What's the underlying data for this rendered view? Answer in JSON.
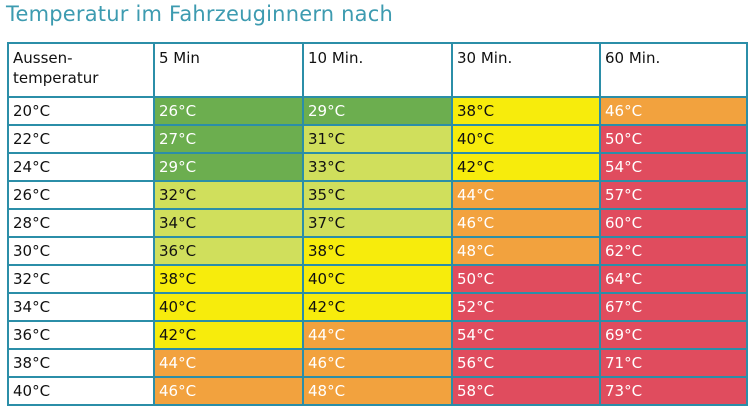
{
  "title": "Temperatur im Fahrzeuginnern nach",
  "colors": {
    "title": "#3d9bb0",
    "border": "#2b8ea8",
    "dark_green": "#6cae4f",
    "light_green": "#d0df5c",
    "yellow": "#f7ec0c",
    "orange": "#f2a23e",
    "red": "#e04c5e",
    "text_dark": "#111111",
    "text_light": "#ffffff"
  },
  "table": {
    "headers": [
      "Aussen-\ntemperatur",
      "5 Min",
      "10 Min.",
      "30 Min.",
      "60 Min."
    ],
    "rows": [
      {
        "label": "20°C",
        "cells": [
          {
            "text": "26°C",
            "color": "dark_green"
          },
          {
            "text": "29°C",
            "color": "dark_green"
          },
          {
            "text": "38°C",
            "color": "yellow"
          },
          {
            "text": "46°C",
            "color": "orange"
          }
        ]
      },
      {
        "label": "22°C",
        "cells": [
          {
            "text": "27°C",
            "color": "dark_green"
          },
          {
            "text": "31°C",
            "color": "light_green"
          },
          {
            "text": "40°C",
            "color": "yellow"
          },
          {
            "text": "50°C",
            "color": "red"
          }
        ]
      },
      {
        "label": "24°C",
        "cells": [
          {
            "text": "29°C",
            "color": "dark_green"
          },
          {
            "text": "33°C",
            "color": "light_green"
          },
          {
            "text": "42°C",
            "color": "yellow"
          },
          {
            "text": "54°C",
            "color": "red"
          }
        ]
      },
      {
        "label": "26°C",
        "cells": [
          {
            "text": "32°C",
            "color": "light_green"
          },
          {
            "text": "35°C",
            "color": "light_green"
          },
          {
            "text": "44°C",
            "color": "orange"
          },
          {
            "text": "57°C",
            "color": "red"
          }
        ]
      },
      {
        "label": "28°C",
        "cells": [
          {
            "text": "34°C",
            "color": "light_green"
          },
          {
            "text": "37°C",
            "color": "light_green"
          },
          {
            "text": "46°C",
            "color": "orange"
          },
          {
            "text": "60°C",
            "color": "red"
          }
        ]
      },
      {
        "label": "30°C",
        "cells": [
          {
            "text": "36°C",
            "color": "light_green"
          },
          {
            "text": "38°C",
            "color": "yellow"
          },
          {
            "text": "48°C",
            "color": "orange"
          },
          {
            "text": "62°C",
            "color": "red"
          }
        ]
      },
      {
        "label": "32°C",
        "cells": [
          {
            "text": "38°C",
            "color": "yellow"
          },
          {
            "text": "40°C",
            "color": "yellow"
          },
          {
            "text": "50°C",
            "color": "red"
          },
          {
            "text": "64°C",
            "color": "red"
          }
        ]
      },
      {
        "label": "34°C",
        "cells": [
          {
            "text": "40°C",
            "color": "yellow"
          },
          {
            "text": "42°C",
            "color": "yellow"
          },
          {
            "text": "52°C",
            "color": "red"
          },
          {
            "text": "67°C",
            "color": "red"
          }
        ]
      },
      {
        "label": "36°C",
        "cells": [
          {
            "text": "42°C",
            "color": "yellow"
          },
          {
            "text": "44°C",
            "color": "orange"
          },
          {
            "text": "54°C",
            "color": "red"
          },
          {
            "text": "69°C",
            "color": "red"
          }
        ]
      },
      {
        "label": "38°C",
        "cells": [
          {
            "text": "44°C",
            "color": "orange"
          },
          {
            "text": "46°C",
            "color": "orange"
          },
          {
            "text": "56°C",
            "color": "red"
          },
          {
            "text": "71°C",
            "color": "red"
          }
        ]
      },
      {
        "label": "40°C",
        "cells": [
          {
            "text": "46°C",
            "color": "orange"
          },
          {
            "text": "48°C",
            "color": "orange"
          },
          {
            "text": "58°C",
            "color": "red"
          },
          {
            "text": "73°C",
            "color": "red"
          }
        ]
      }
    ]
  }
}
